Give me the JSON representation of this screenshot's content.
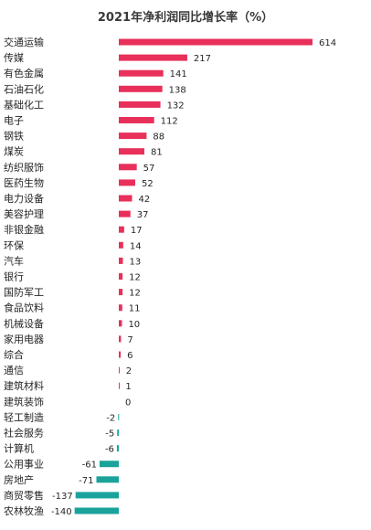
{
  "chart_data": {
    "type": "bar",
    "orientation": "horizontal",
    "title": "2021年净利润同比增长率（%）",
    "xlabel": "",
    "ylabel": "",
    "grid": false,
    "colors": {
      "positive": "#e8305a",
      "negative": "#1aa39b"
    },
    "categories": [
      "交通运输",
      "传媒",
      "有色金属",
      "石油石化",
      "基础化工",
      "电子",
      "钢铁",
      "煤炭",
      "纺织服饰",
      "医药生物",
      "电力设备",
      "美容护理",
      "非银金融",
      "环保",
      "汽车",
      "银行",
      "国防军工",
      "食品饮料",
      "机械设备",
      "家用电器",
      "综合",
      "通信",
      "建筑材料",
      "建筑装饰",
      "轻工制造",
      "社会服务",
      "计算机",
      "公用事业",
      "房地产",
      "商贸零售",
      "农林牧渔"
    ],
    "values": [
      614,
      217,
      141,
      138,
      132,
      112,
      88,
      81,
      57,
      52,
      42,
      37,
      17,
      14,
      13,
      12,
      12,
      11,
      10,
      7,
      6,
      2,
      1,
      0,
      -2,
      -5,
      -6,
      -61,
      -71,
      -137,
      -140
    ],
    "xlim": [
      -140,
      614
    ]
  }
}
